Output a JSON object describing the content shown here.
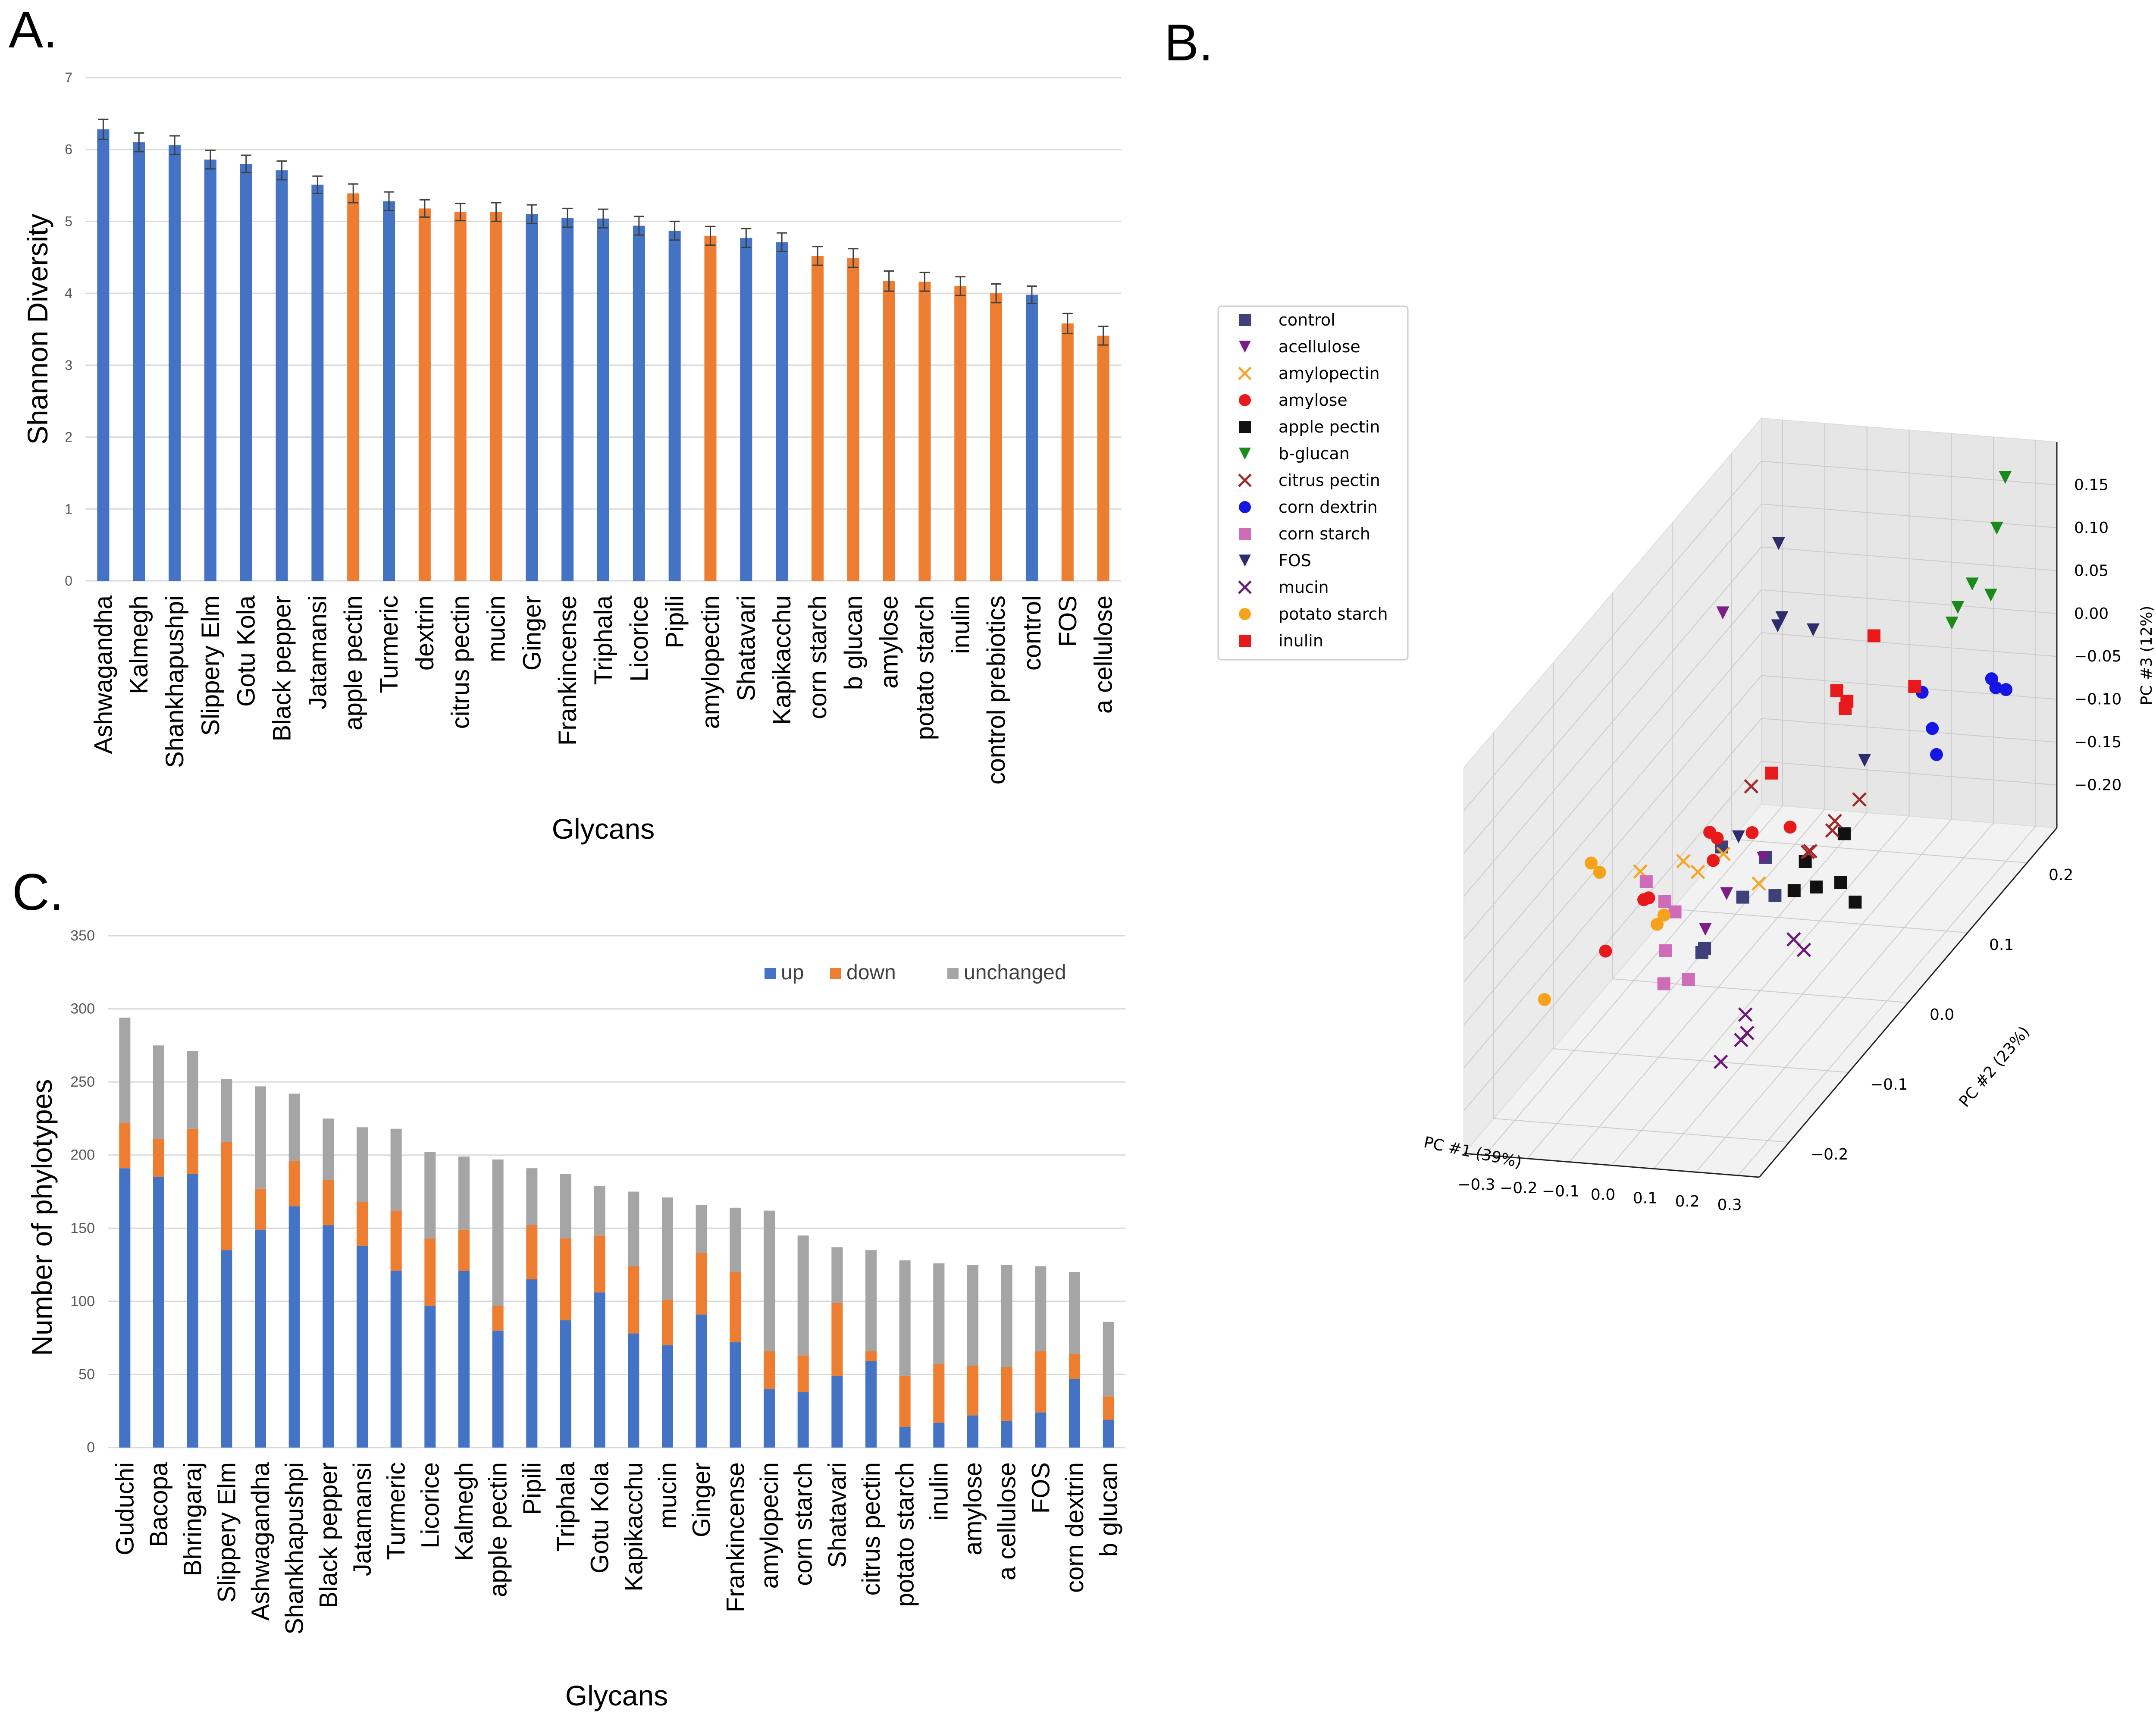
{
  "chart_data": [
    {
      "panel": "A.",
      "type": "bar",
      "ylabel": "Shannon Diversity",
      "xlabel": "Glycans",
      "ylim": [
        0,
        7
      ],
      "yticks": [
        "0",
        "1",
        "2",
        "3",
        "4",
        "5",
        "6",
        "7"
      ],
      "colors": {
        "herb": "#4472c4",
        "glycan": "#ed7d31"
      },
      "categories": [
        "Ashwagandha",
        "Kalmegh",
        "Shankhapushpi",
        "Slippery Elm",
        "Gotu Kola",
        "Black pepper",
        "Jatamansi",
        "apple pectin",
        "Turmeric",
        "dextrin",
        "citrus pectin",
        "mucin",
        "Ginger",
        "Frankincense",
        "Triphala",
        "Licorice",
        "Pipili",
        "amylopectin",
        "Shatavari",
        "Kapikacchu",
        "corn starch",
        "b glucan",
        "amylose",
        "potato starch",
        "inulin",
        "control prebiotics",
        "control",
        "FOS",
        "a cellulose"
      ],
      "values": [
        6.28,
        6.1,
        6.06,
        5.86,
        5.8,
        5.71,
        5.51,
        5.39,
        5.28,
        5.18,
        5.13,
        5.13,
        5.1,
        5.05,
        5.04,
        4.94,
        4.87,
        4.8,
        4.77,
        4.71,
        4.52,
        4.49,
        4.17,
        4.16,
        4.1,
        4.0,
        3.98,
        3.58,
        3.41
      ],
      "errors": [
        0.14,
        0.13,
        0.13,
        0.13,
        0.12,
        0.13,
        0.12,
        0.13,
        0.13,
        0.12,
        0.12,
        0.13,
        0.13,
        0.13,
        0.13,
        0.13,
        0.13,
        0.13,
        0.13,
        0.13,
        0.13,
        0.13,
        0.14,
        0.13,
        0.13,
        0.13,
        0.12,
        0.14,
        0.13
      ],
      "groups": [
        "herb",
        "herb",
        "herb",
        "herb",
        "herb",
        "herb",
        "herb",
        "glycan",
        "herb",
        "glycan",
        "glycan",
        "glycan",
        "herb",
        "herb",
        "herb",
        "herb",
        "herb",
        "glycan",
        "herb",
        "herb",
        "glycan",
        "glycan",
        "glycan",
        "glycan",
        "glycan",
        "glycan",
        "herb",
        "glycan",
        "glycan"
      ]
    },
    {
      "panel": "B.",
      "type": "scatter",
      "subtype": "3d-pca",
      "xlabel": "PC #1 (39%)",
      "ylabel": "PC #2 (23%)",
      "zlabel": "PC #3 (12%)",
      "xticks": [
        "−0.3",
        "−0.2",
        "−0.1",
        "0.0",
        "0.1",
        "0.2",
        "0.3"
      ],
      "yticks": [
        "−0.2",
        "−0.1",
        "0.0",
        "0.1",
        "0.2"
      ],
      "zticks": [
        "0.15",
        "0.10",
        "0.05",
        "0.00",
        "−0.05",
        "−0.10",
        "−0.15",
        "−0.20"
      ],
      "legend_position": "top-left",
      "series": [
        {
          "name": "control",
          "marker": "square",
          "color": "#3f3f7a",
          "points": [
            [
              -0.05,
              -0.03,
              -0.06
            ],
            [
              -0.03,
              0.03,
              -0.12
            ],
            [
              -0.09,
              -0.03,
              -0.18
            ],
            [
              -0.07,
              0.02,
              -0.16
            ],
            [
              -0.04,
              -0.07,
              -0.15
            ],
            [
              -0.05,
              0.06,
              -0.19
            ]
          ]
        },
        {
          "name": "acellulose",
          "marker": "triangle-down",
          "color": "#7b1f86",
          "points": [
            [
              -0.23,
              0.1,
              0.1
            ],
            [
              -0.08,
              0.0,
              -0.14
            ],
            [
              -0.05,
              0.04,
              -0.13
            ],
            [
              -0.06,
              -0.05,
              -0.14
            ]
          ]
        },
        {
          "name": "amylopectin",
          "marker": "x",
          "color": "#f5a623",
          "points": [
            [
              -0.2,
              -0.06,
              -0.07
            ],
            [
              -0.14,
              -0.03,
              -0.08
            ],
            [
              -0.12,
              -0.02,
              -0.1
            ],
            [
              -0.13,
              0.03,
              -0.12
            ],
            [
              -0.06,
              0.04,
              -0.16
            ]
          ]
        },
        {
          "name": "amylose",
          "marker": "circle",
          "color": "#e8191b",
          "points": [
            [
              -0.22,
              -0.04,
              -0.12
            ],
            [
              -0.18,
              -0.06,
              -0.1
            ],
            [
              -0.14,
              0.02,
              -0.12
            ],
            [
              -0.12,
              0.0,
              -0.07
            ],
            [
              -0.09,
              0.05,
              -0.11
            ],
            [
              -0.06,
              -0.03,
              -0.05
            ],
            [
              0.0,
              0.05,
              -0.1
            ],
            [
              -0.24,
              -0.09,
              -0.14
            ]
          ]
        },
        {
          "name": "apple pectin",
          "marker": "square",
          "color": "#111111",
          "points": [
            [
              0.05,
              0.04,
              -0.13
            ],
            [
              0.08,
              0.0,
              -0.13
            ],
            [
              0.09,
              0.03,
              -0.15
            ],
            [
              0.12,
              0.05,
              -0.16
            ],
            [
              0.14,
              0.06,
              -0.19
            ],
            [
              0.1,
              0.07,
              -0.12
            ]
          ]
        },
        {
          "name": "b-glucan",
          "marker": "triangle-down",
          "color": "#1a8a1a",
          "points": [
            [
              0.27,
              0.22,
              0.18
            ],
            [
              0.25,
              0.22,
              0.12
            ],
            [
              0.2,
              0.19,
              0.05
            ],
            [
              0.22,
              0.2,
              0.07
            ],
            [
              0.25,
              0.21,
              0.05
            ],
            [
              0.2,
              0.18,
              0.04
            ]
          ]
        },
        {
          "name": "citrus pectin",
          "marker": "x",
          "color": "#a02a2a",
          "points": [
            [
              -0.05,
              0.02,
              -0.03
            ],
            [
              0.07,
              0.03,
              -0.11
            ],
            [
              0.09,
              0.02,
              -0.1
            ],
            [
              0.12,
              0.04,
              -0.08
            ],
            [
              0.15,
              0.06,
              -0.07
            ],
            [
              0.1,
              0.05,
              -0.1
            ]
          ]
        },
        {
          "name": "corn dextrin",
          "marker": "circle",
          "color": "#1515e6",
          "points": [
            [
              0.2,
              0.13,
              0.0
            ],
            [
              0.21,
              0.14,
              -0.05
            ],
            [
              0.22,
              0.14,
              -0.08
            ],
            [
              0.28,
              0.19,
              -0.03
            ],
            [
              0.29,
              0.19,
              -0.04
            ],
            [
              0.3,
              0.2,
              -0.05
            ]
          ]
        },
        {
          "name": "corn starch",
          "marker": "square",
          "color": "#cf6cb8",
          "points": [
            [
              -0.2,
              -0.05,
              -0.09
            ],
            [
              -0.17,
              -0.04,
              -0.12
            ],
            [
              -0.16,
              -0.03,
              -0.14
            ],
            [
              -0.14,
              -0.06,
              -0.16
            ],
            [
              -0.1,
              -0.05,
              -0.2
            ],
            [
              -0.13,
              -0.07,
              -0.19
            ]
          ]
        },
        {
          "name": "FOS",
          "marker": "triangle-down",
          "color": "#2d2d6e",
          "points": [
            [
              -0.14,
              0.13,
              0.16
            ],
            [
              -0.09,
              0.1,
              0.1
            ],
            [
              -0.1,
              0.1,
              0.09
            ],
            [
              -0.03,
              0.11,
              0.08
            ],
            [
              0.12,
              0.09,
              -0.05
            ],
            [
              -0.08,
              0.02,
              -0.09
            ]
          ]
        },
        {
          "name": "mucin",
          "marker": "x",
          "color": "#6b1a7a",
          "points": [
            [
              0.22,
              -0.1,
              -0.1
            ],
            [
              0.23,
              -0.09,
              -0.12
            ],
            [
              0.19,
              -0.16,
              -0.14
            ],
            [
              0.18,
              -0.15,
              -0.17
            ],
            [
              0.18,
              -0.16,
              -0.17
            ],
            [
              0.16,
              -0.18,
              -0.18
            ]
          ]
        },
        {
          "name": "potato starch",
          "marker": "circle",
          "color": "#f7a21b",
          "points": [
            [
              -0.26,
              -0.1,
              -0.03
            ],
            [
              -0.24,
              -0.1,
              -0.04
            ],
            [
              -0.16,
              -0.06,
              -0.13
            ],
            [
              -0.13,
              -0.07,
              -0.11
            ],
            [
              -0.3,
              -0.15,
              -0.15
            ]
          ]
        },
        {
          "name": "inulin",
          "marker": "square",
          "color": "#e8191b",
          "points": [
            [
              0.1,
              0.12,
              0.07
            ],
            [
              0.04,
              0.1,
              0.02
            ],
            [
              0.05,
              0.11,
              0.0
            ],
            [
              0.06,
              0.1,
              0.0
            ],
            [
              0.14,
              0.16,
              -0.02
            ],
            [
              -0.03,
              0.04,
              -0.03
            ]
          ]
        }
      ]
    },
    {
      "panel": "C.",
      "type": "bar",
      "stacked": true,
      "ylabel": "Number of phylotypes",
      "xlabel": "Glycans",
      "ylim": [
        0,
        350
      ],
      "yticks": [
        "0",
        "50",
        "100",
        "150",
        "200",
        "250",
        "300",
        "350"
      ],
      "legend_position": "top-right",
      "categories": [
        "Guduchi",
        "Bacopa",
        "Bhringaraj",
        "Slippery Elm",
        "Ashwagandha",
        "Shankhapushpi",
        "Black pepper",
        "Jatamansi",
        "Turmeric",
        "Licorice",
        "Kalmegh",
        "apple pectin",
        "Pipili",
        "Triphala",
        "Gotu Kola",
        "Kapikacchu",
        "mucin",
        "Ginger",
        "Frankincense",
        "amylopecin",
        "corn starch",
        "Shatavari",
        "citrus pectin",
        "potato starch",
        "inulin",
        "amylose",
        "a cellulose",
        "FOS",
        "corn dextrin",
        "b glucan"
      ],
      "series": [
        {
          "name": "up",
          "color": "#4472c4",
          "values": [
            191,
            185,
            187,
            135,
            149,
            165,
            152,
            138,
            121,
            97,
            121,
            80,
            115,
            87,
            106,
            78,
            70,
            91,
            72,
            40,
            38,
            49,
            59,
            14,
            17,
            22,
            18,
            24,
            47,
            19
          ]
        },
        {
          "name": "down",
          "color": "#ed7d31",
          "values": [
            31,
            26,
            31,
            74,
            28,
            31,
            31,
            30,
            41,
            46,
            28,
            17,
            37,
            56,
            39,
            46,
            31,
            42,
            48,
            26,
            25,
            50,
            7,
            35,
            40,
            34,
            37,
            42,
            17,
            16
          ]
        },
        {
          "name": "unchanged",
          "color": "#a5a5a5",
          "values": [
            72,
            64,
            53,
            43,
            70,
            46,
            42,
            51,
            56,
            59,
            50,
            100,
            39,
            44,
            34,
            51,
            70,
            33,
            44,
            96,
            82,
            38,
            69,
            79,
            69,
            69,
            70,
            58,
            56,
            51
          ]
        }
      ]
    }
  ]
}
